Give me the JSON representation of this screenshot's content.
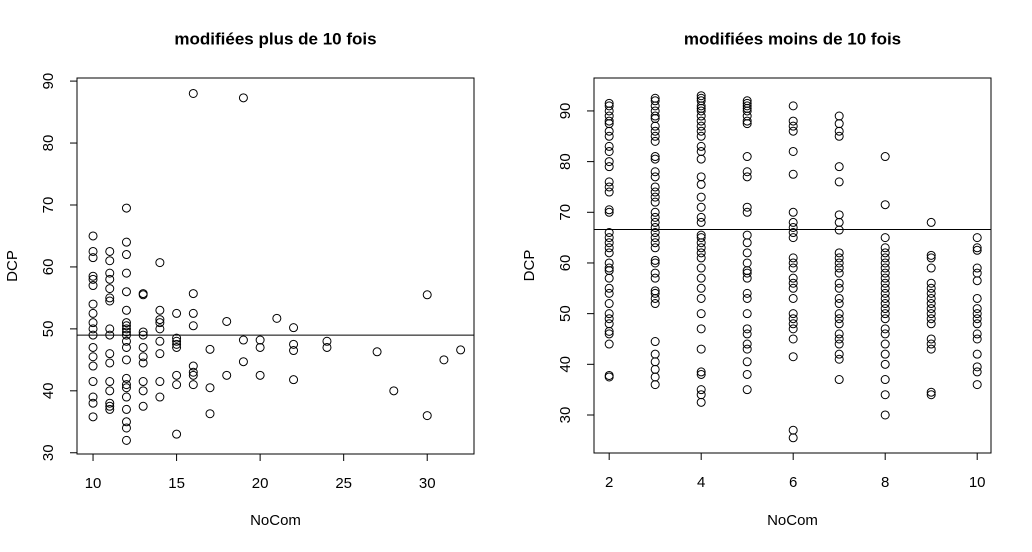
{
  "chart_data": [
    {
      "type": "scatter",
      "title": "modifiées plus de 10 fois",
      "xlabel": "NoCom",
      "ylabel": "DCP",
      "color": "#000000",
      "hline": 49,
      "xlim": [
        9.04,
        32.8
      ],
      "ylim": [
        29.8,
        90.5
      ],
      "xticks": [
        10,
        15,
        20,
        25,
        30
      ],
      "yticks": [
        30,
        40,
        50,
        60,
        70,
        80,
        90
      ],
      "x": [
        10,
        10,
        10,
        10,
        10,
        10,
        10,
        10,
        10,
        10,
        10,
        10,
        10,
        10,
        10,
        10,
        10,
        10,
        11,
        11,
        11,
        11,
        11,
        11,
        11,
        11,
        11,
        11,
        11,
        11,
        11,
        11,
        11,
        11,
        12,
        12,
        12,
        12,
        12,
        12,
        12,
        12,
        12,
        12,
        12,
        12,
        12,
        12,
        12,
        12,
        12,
        12,
        12,
        12,
        12,
        12,
        13,
        13,
        13,
        13,
        13,
        13,
        13,
        13,
        13,
        13,
        14,
        14,
        14,
        14,
        14,
        14,
        14,
        14,
        14,
        15,
        15,
        15,
        15,
        15,
        15,
        15,
        15,
        16,
        16,
        16,
        16,
        16,
        16,
        16,
        16,
        17,
        17,
        17,
        18,
        18,
        19,
        19,
        19,
        20,
        20,
        20,
        21,
        22,
        22,
        22,
        22,
        24,
        24,
        27,
        28,
        30,
        30,
        31,
        32
      ],
      "values": [
        65,
        62.5,
        61.5,
        58.5,
        58,
        57,
        54,
        52.5,
        51,
        50,
        49,
        47,
        45.5,
        44,
        41.5,
        39,
        38,
        35.8,
        62.5,
        61,
        59,
        58,
        56.5,
        55,
        54.5,
        50,
        49,
        46,
        44.5,
        41.5,
        40,
        38,
        37.5,
        37,
        69.5,
        64,
        62,
        59,
        56,
        53,
        51,
        50.5,
        50,
        49.5,
        49,
        48,
        47,
        45,
        42,
        41,
        40.5,
        39,
        37,
        35,
        34,
        32,
        55.7,
        55.5,
        49.5,
        49,
        47,
        45.5,
        44.5,
        41.5,
        40,
        37.5,
        60.7,
        53,
        51.5,
        51,
        50,
        48,
        46,
        41.5,
        39,
        52.5,
        48.5,
        48,
        47.5,
        47,
        42.5,
        41,
        33,
        88,
        55.7,
        52.5,
        50.5,
        44,
        43,
        42.5,
        41,
        46.7,
        40.5,
        36.3,
        51.2,
        42.5,
        87.3,
        48.2,
        44.7,
        48.2,
        47,
        42.5,
        51.7,
        50.2,
        47.5,
        46.5,
        41.8,
        48,
        47,
        46.3,
        40,
        55.5,
        36,
        45,
        46.6
      ]
    },
    {
      "type": "scatter",
      "title": "modifiées moins de 10 fois",
      "xlabel": "NoCom",
      "ylabel": "DCP",
      "color": "#000000",
      "hline": 66.6,
      "xlim": [
        1.67,
        10.3
      ],
      "ylim": [
        22.5,
        96.5
      ],
      "xticks": [
        2,
        4,
        6,
        8,
        10
      ],
      "yticks": [
        30,
        40,
        50,
        60,
        70,
        80,
        90
      ],
      "x": [
        2,
        2,
        2,
        2,
        2,
        2,
        2,
        2,
        2,
        2,
        2,
        2,
        2,
        2,
        2,
        2,
        2,
        2,
        2,
        2,
        2,
        2,
        2,
        2,
        2,
        2,
        2,
        2,
        2,
        2,
        2,
        2,
        2,
        2,
        2,
        2,
        2,
        3,
        3,
        3,
        3,
        3,
        3,
        3,
        3,
        3,
        3,
        3,
        3,
        3,
        3,
        3,
        3,
        3,
        3,
        3,
        3,
        3,
        3,
        3,
        3,
        3,
        3,
        3,
        3,
        3,
        3,
        3,
        3,
        3,
        3,
        3,
        3,
        3,
        3,
        3,
        3,
        4,
        4,
        4,
        4,
        4,
        4,
        4,
        4,
        4,
        4,
        4,
        4,
        4,
        4,
        4,
        4,
        4,
        4,
        4,
        4,
        4,
        4,
        4,
        4,
        4,
        4,
        4,
        4,
        4,
        4,
        4,
        4,
        4,
        4,
        4,
        4,
        4,
        4,
        5,
        5,
        5,
        5,
        5,
        5,
        5,
        5,
        5,
        5,
        5,
        5,
        5,
        5,
        5,
        5,
        5,
        5,
        5,
        5,
        5,
        5,
        5,
        5,
        5,
        5,
        5,
        5,
        5,
        5,
        6,
        6,
        6,
        6,
        6,
        6,
        6,
        6,
        6,
        6,
        6,
        6,
        6,
        6,
        6,
        6,
        6,
        6,
        6,
        6,
        6,
        6,
        6,
        6,
        6,
        6,
        7,
        7,
        7,
        7,
        7,
        7,
        7,
        7,
        7,
        7,
        7,
        7,
        7,
        7,
        7,
        7,
        7,
        7,
        7,
        7,
        7,
        7,
        7,
        7,
        7,
        7,
        7,
        8,
        8,
        8,
        8,
        8,
        8,
        8,
        8,
        8,
        8,
        8,
        8,
        8,
        8,
        8,
        8,
        8,
        8,
        8,
        8,
        8,
        8,
        8,
        8,
        8,
        8,
        9,
        9,
        9,
        9,
        9,
        9,
        9,
        9,
        9,
        9,
        9,
        9,
        9,
        9,
        9,
        9,
        9,
        9,
        10,
        10,
        10,
        10,
        10,
        10,
        10,
        10,
        10,
        10,
        10,
        10,
        10,
        10,
        10,
        10,
        10
      ],
      "values": [
        91.5,
        91,
        90,
        89,
        88,
        87.5,
        86,
        85,
        83,
        82,
        80,
        79,
        76,
        75,
        74,
        70.5,
        70,
        66,
        65,
        64,
        63,
        62,
        60,
        59,
        58.5,
        57,
        55,
        54,
        52,
        50,
        49,
        48,
        46.5,
        46,
        44,
        37.8,
        37.5,
        92.5,
        92,
        91,
        90,
        89,
        88.5,
        87,
        86,
        85,
        84,
        81,
        80.5,
        78,
        77,
        75,
        74,
        73,
        72,
        70,
        69,
        68,
        67,
        66,
        65,
        64,
        63,
        60.5,
        60,
        58,
        57,
        54.5,
        54,
        53,
        52,
        44.5,
        42,
        40.5,
        39,
        37.5,
        36,
        93,
        92.5,
        92,
        91,
        90.5,
        90,
        89,
        88,
        87,
        86,
        85,
        83,
        82,
        80.5,
        77,
        75.5,
        73,
        71,
        69,
        68,
        65.5,
        65,
        64,
        63,
        62,
        61,
        59,
        57,
        55,
        53,
        50,
        47,
        43,
        38.5,
        38,
        35,
        34,
        32.5,
        92,
        91.5,
        91,
        90.5,
        90,
        89,
        88,
        87.5,
        81,
        78,
        77,
        71,
        70,
        65.5,
        64,
        62,
        60,
        58.5,
        58,
        57,
        54,
        53,
        50,
        47,
        46,
        44,
        43,
        40.5,
        38,
        35,
        91,
        88,
        87,
        86,
        82,
        77.5,
        70,
        68,
        67,
        66,
        65,
        61,
        60,
        59,
        57,
        56,
        55,
        53,
        50,
        49,
        48,
        47,
        45,
        41.5,
        27,
        25.5,
        89,
        87.5,
        86,
        85,
        79,
        76,
        69.5,
        68,
        66.5,
        62,
        61,
        60,
        59,
        58,
        56,
        55,
        53,
        52,
        50,
        49,
        48,
        46,
        45,
        44,
        42,
        41,
        37,
        81,
        71.5,
        65,
        63,
        62,
        61,
        60,
        59,
        58,
        57,
        56,
        55,
        54,
        53,
        52,
        51,
        50,
        49,
        47,
        46,
        44,
        42,
        40,
        37,
        34,
        30,
        68,
        61.5,
        61,
        59,
        56,
        55,
        54,
        53,
        52,
        51,
        50,
        49,
        48,
        45,
        44,
        43,
        34.5,
        34,
        65,
        63,
        62.5,
        59,
        58,
        56.5,
        53,
        51,
        50,
        49,
        48,
        46,
        45,
        42,
        39.5,
        38.5,
        36
      ]
    }
  ]
}
